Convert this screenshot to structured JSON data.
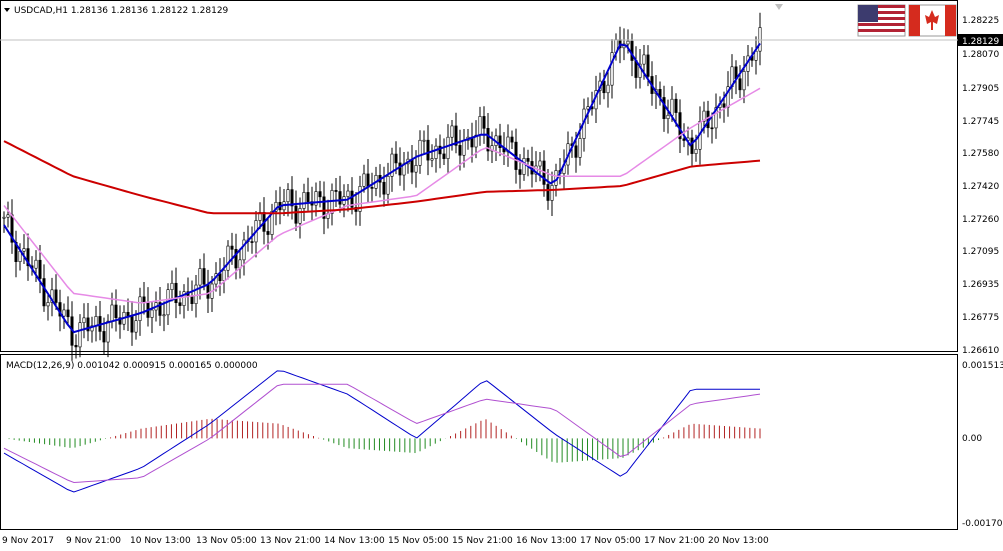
{
  "header": {
    "symbol_line": "USDCAD,H1  1.28136 1.28136 1.28122 1.28129",
    "usa_flag_icon": "us-flag-icon",
    "canada_flag_icon": "canada-flag-icon"
  },
  "price_axis": {
    "ticks": [
      "1.28225",
      "1.28070",
      "1.27905",
      "1.27745",
      "1.27580",
      "1.27420",
      "1.27260",
      "1.27095",
      "1.26935",
      "1.26775",
      "1.26610"
    ],
    "current_price": "1.28129"
  },
  "macd_panel": {
    "label": "MACD(12,26,9) 0.001042 0.000915 0.000165 0.000000",
    "ticks": [
      "0.001513",
      "0.00",
      "-0.001701"
    ]
  },
  "time_axis": {
    "labels": [
      "9 Nov 2017",
      "9 Nov 21:00",
      "10 Nov 13:00",
      "13 Nov 05:00",
      "13 Nov 21:00",
      "14 Nov 13:00",
      "15 Nov 05:00",
      "15 Nov 21:00",
      "16 Nov 13:00",
      "17 Nov 05:00",
      "17 Nov 21:00",
      "20 Nov 13:00"
    ]
  },
  "colors": {
    "bull_candle": "#000000",
    "fast_ma": "#0000cc",
    "mid_ma": "#e68ae6",
    "slow_ma": "#cc0000",
    "macd_hist_pos": "#b22222",
    "macd_hist_neg": "#228b22",
    "macd_line": "#0000cc",
    "signal_line": "#b050d0",
    "grid_line": "#c0c0c0"
  },
  "chart_data": [
    {
      "type": "line",
      "title": "USDCAD,H1",
      "ylim": [
        1.2661,
        1.283
      ],
      "x": [
        "9 Nov 2017",
        "9 Nov 21:00",
        "10 Nov 13:00",
        "13 Nov 05:00",
        "13 Nov 21:00",
        "14 Nov 13:00",
        "15 Nov 05:00",
        "15 Nov 21:00",
        "16 Nov 13:00",
        "17 Nov 05:00",
        "17 Nov 21:00",
        "20 Nov 13:00"
      ],
      "series": [
        {
          "values": [
            1.2725,
            1.267,
            1.268,
            1.2695,
            1.2735,
            1.2738,
            1.276,
            1.2772,
            1.2745,
            1.282,
            1.2765,
            1.2818
          ]
        },
        {
          "values": [
            1.2735,
            1.269,
            1.2685,
            1.269,
            1.272,
            1.2735,
            1.274,
            1.2765,
            1.275,
            1.275,
            1.2775,
            1.2795
          ]
        },
        {
          "values": [
            1.2768,
            1.275,
            1.274,
            1.2731,
            1.2731,
            1.2733,
            1.2737,
            1.2742,
            1.2743,
            1.2745,
            1.2755,
            1.2758
          ]
        }
      ],
      "current_price": 1.28129
    },
    {
      "type": "bar",
      "title": "MACD(12,26,9) 0.001042 0.000915 0.000165 0.000000",
      "ylim": [
        -0.001701,
        0.001513
      ],
      "x": [
        "9 Nov 2017",
        "9 Nov 21:00",
        "10 Nov 13:00",
        "13 Nov 05:00",
        "13 Nov 21:00",
        "14 Nov 13:00",
        "15 Nov 05:00",
        "15 Nov 21:00",
        "16 Nov 13:00",
        "17 Nov 05:00",
        "17 Nov 21:00",
        "20 Nov 13:00"
      ],
      "series": [
        {
          "values": [
            -0.0003,
            -0.0011,
            -0.0006,
            0.0003,
            0.0014,
            0.0009,
            0.0,
            0.0012,
            0.0001,
            -0.0008,
            0.001,
            0.001
          ]
        },
        {
          "values": [
            -0.0002,
            -0.0009,
            -0.0008,
            0.0,
            0.0011,
            0.0011,
            0.0003,
            0.0008,
            0.0006,
            -0.0004,
            0.0007,
            0.0009
          ]
        },
        {
          "values": [
            0.0,
            -0.0002,
            0.0002,
            0.0004,
            0.0003,
            -0.0002,
            -0.0003,
            0.0004,
            -0.0005,
            -0.0004,
            0.0003,
            0.0002
          ]
        }
      ]
    }
  ]
}
